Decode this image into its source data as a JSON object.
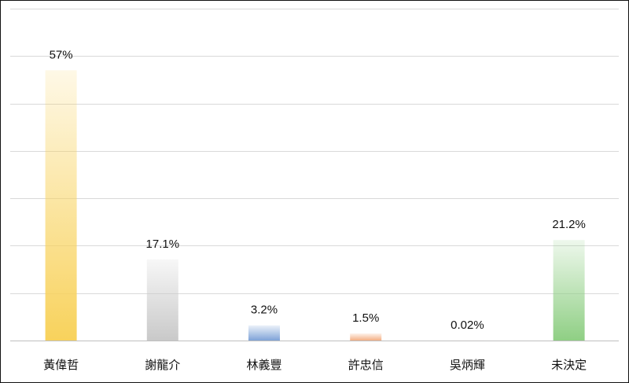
{
  "chart_data": {
    "type": "bar",
    "categories": [
      "黃偉哲",
      "謝龍介",
      "林義豐",
      "許忠信",
      "吳炳輝",
      "未決定"
    ],
    "values": [
      57,
      17.1,
      3.2,
      1.5,
      0.02,
      21.2
    ],
    "data_labels": [
      "57%",
      "17.1%",
      "3.2%",
      "1.5%",
      "0.02%",
      "21.2%"
    ],
    "unit": "%",
    "ylim": [
      0,
      70
    ],
    "y_gridline_step": 10,
    "grid": true,
    "legend": "none",
    "colors": {
      "bars": [
        "#f8d25c",
        "#c9c9c9",
        "#7fa3d8",
        "#f4ae82",
        "#f4ae82",
        "#8fcf84"
      ],
      "gridline": "#d9d9d9",
      "frame": "#111111"
    }
  }
}
